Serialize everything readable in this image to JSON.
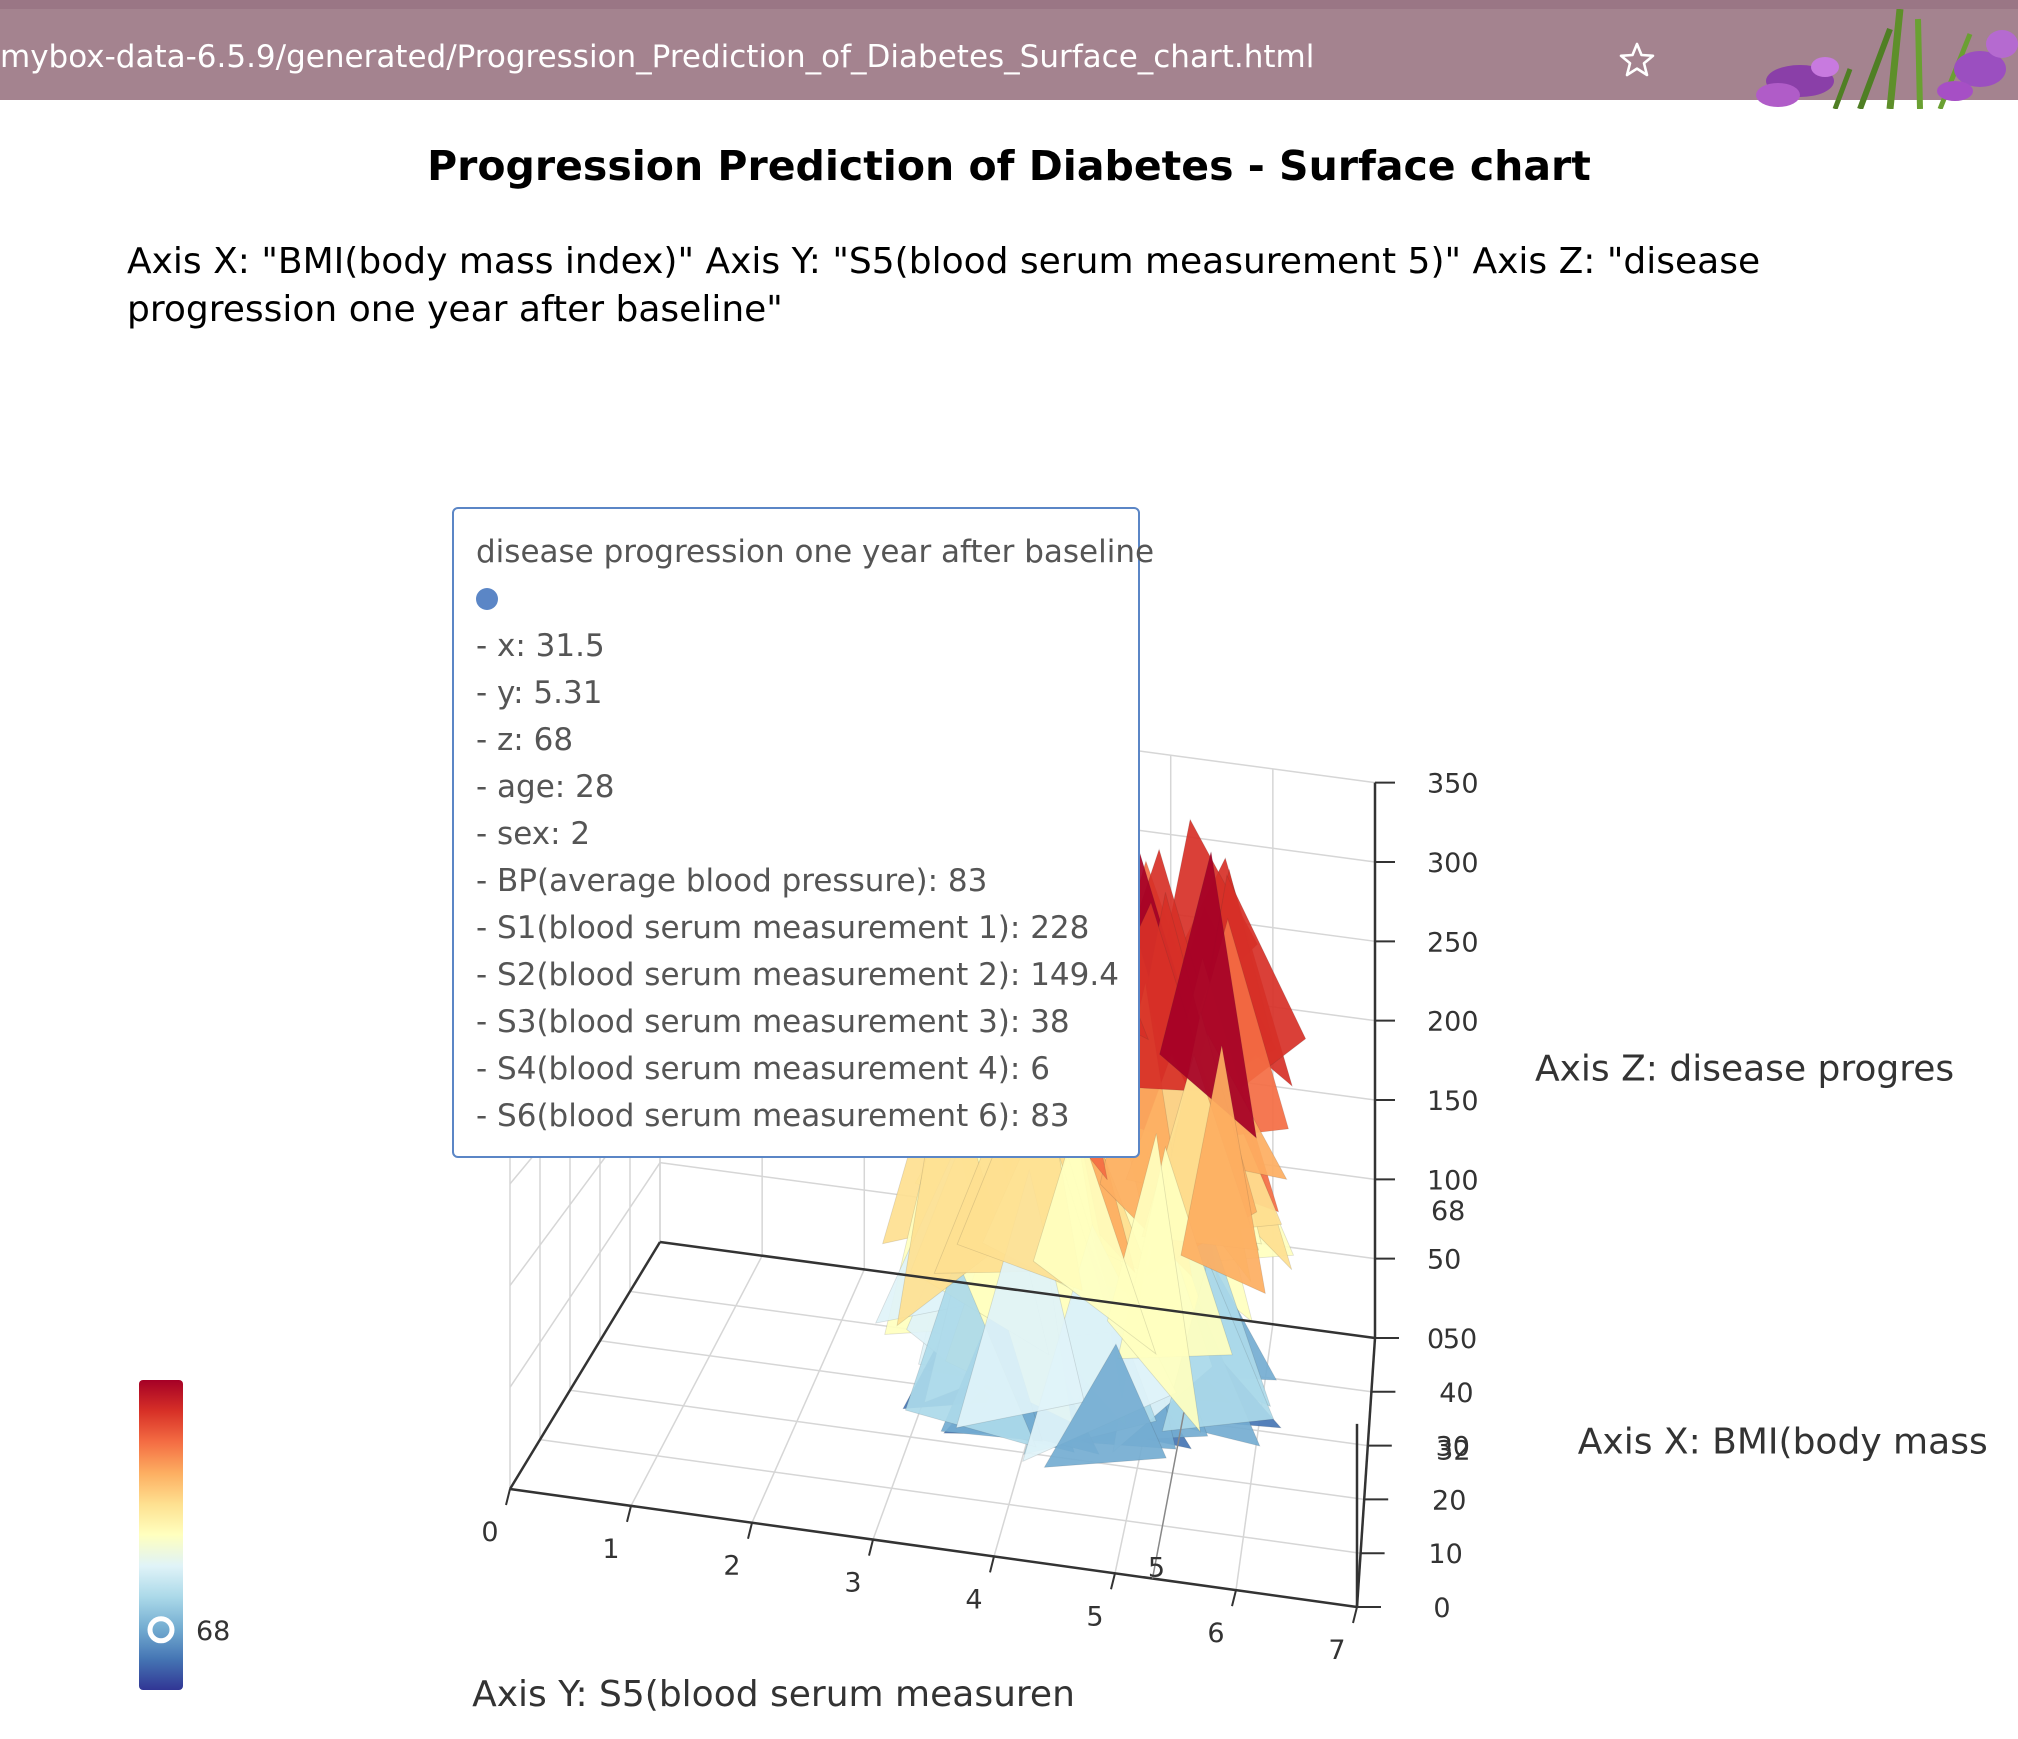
{
  "browser": {
    "url": "mybox-data-6.5.9/generated/Progression_Prediction_of_Diabetes_Surface_chart.html",
    "star_icon": "star-icon"
  },
  "page": {
    "title": "Progression Prediction of Diabetes - Surface chart",
    "axis_description": "Axis X: \"BMI(body mass index)\" Axis Y: \"S5(blood serum measurement 5)\" Axis Z: \"disease progression one year after baseline\""
  },
  "tooltip": {
    "title": "disease progression one year after baseline",
    "marker_color": "#5b86c6",
    "lines": [
      "- x: 31.5",
      "- y: 5.31",
      "- z: 68",
      "- age: 28",
      "- sex: 2",
      "- BP(average blood pressure): 83",
      "- S1(blood serum measurement 1): 228",
      "- S2(blood serum measurement 2): 149.4",
      "- S3(blood serum measurement 3): 38",
      "- S4(blood serum measurement 4): 6",
      "- S6(blood serum measurement 6): 83"
    ]
  },
  "chart_data": {
    "type": "surface",
    "title": "Progression Prediction of Diabetes - Surface chart",
    "x_axis_name": "Axis X: BMI(body mass",
    "y_axis_name": "Axis Y: S5(blood serum measuren",
    "z_axis_name": "Axis Z: disease progres",
    "x_ticks": [
      "0",
      "10",
      "20",
      "30",
      "40",
      "50"
    ],
    "x_pointer_label": "32",
    "y_ticks": [
      "0",
      "1",
      "2",
      "3",
      "4",
      "5",
      "6",
      "7"
    ],
    "y_pointer_label": "5",
    "z_ticks": [
      "0",
      "50",
      "100",
      "150",
      "200",
      "250",
      "300",
      "350"
    ],
    "z_pointer_label": "68",
    "xlim": [
      0,
      50
    ],
    "ylim": [
      0,
      7
    ],
    "zlim": [
      0,
      350
    ],
    "hovered_point": {
      "x": 31.5,
      "y": 5.31,
      "z": 68
    },
    "visual_map": {
      "pointer_value": "68",
      "colors": [
        "#313695",
        "#4575b4",
        "#74add1",
        "#abd9e9",
        "#e0f3f8",
        "#ffffbf",
        "#fee090",
        "#fdae61",
        "#f46d43",
        "#d73027",
        "#a50026"
      ]
    },
    "grid": true
  }
}
